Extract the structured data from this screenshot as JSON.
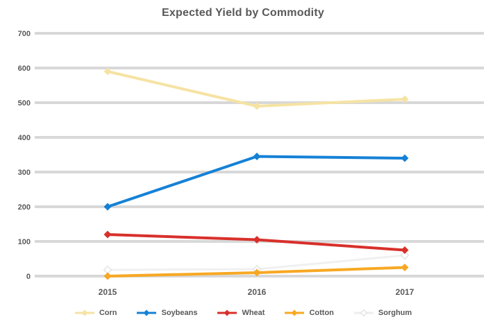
{
  "title": "Expected Yield by Commodity",
  "chart_data": {
    "type": "line",
    "title": "Expected Yield by Commodity",
    "categories": [
      "2015",
      "2016",
      "2017"
    ],
    "series": [
      {
        "name": "Corn",
        "color": "#f6e3a3",
        "values": [
          590,
          490,
          510
        ]
      },
      {
        "name": "Soybeans",
        "color": "#1581d6",
        "values": [
          200,
          345,
          340
        ]
      },
      {
        "name": "Wheat",
        "color": "#d8302b",
        "values": [
          120,
          105,
          75
        ]
      },
      {
        "name": "Cotton",
        "color": "#f7a823",
        "values": [
          0,
          10,
          25
        ]
      },
      {
        "name": "Sorghum",
        "color": "#f2f2f2",
        "values": [
          18,
          20,
          60
        ]
      }
    ],
    "ylim": [
      0,
      700
    ],
    "yticks": [
      700,
      600,
      500,
      400,
      300,
      200,
      100,
      0
    ],
    "grid": true,
    "gridline_color": "#d8d8d8",
    "axis_label_color": "#595959",
    "legend_position": "bottom"
  }
}
